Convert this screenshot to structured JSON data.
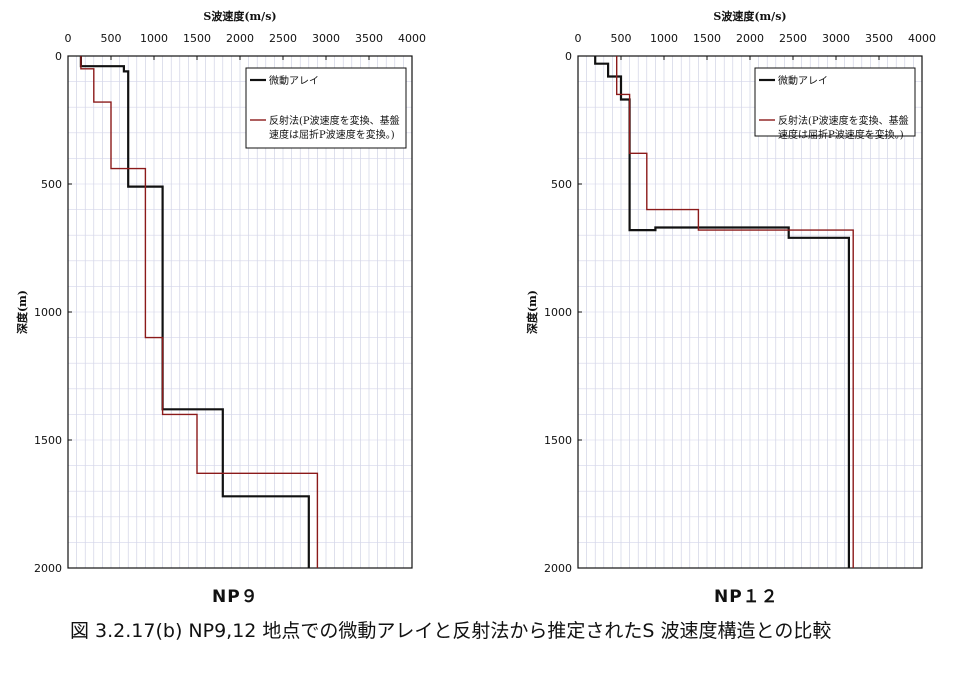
{
  "caption": "図 3.2.17(b)  NP9,12 地点での微動アレイと反射法から推定されたS 波速度構造との比較",
  "chart_data": [
    {
      "type": "line",
      "panel_label": "NP９",
      "xlabel": "S波速度(m/s)",
      "ylabel": "深度(m)",
      "xlim": [
        0,
        4000
      ],
      "ylim": [
        0,
        2000
      ],
      "y_inverted": true,
      "x_ticks": [
        0,
        500,
        1000,
        1500,
        2000,
        2500,
        3000,
        3500,
        4000
      ],
      "y_ticks": [
        0,
        500,
        1000,
        1500,
        2000
      ],
      "legend_position": "top-right",
      "series": [
        {
          "name": "微動アレイ",
          "color": "#111111",
          "legend_lines": [
            "微動アレイ"
          ],
          "x": [
            150,
            150,
            650,
            650,
            700,
            700,
            1100,
            1100,
            1800,
            1800,
            2800,
            2800
          ],
          "y": [
            0,
            40,
            40,
            60,
            60,
            510,
            510,
            1380,
            1380,
            1720,
            1720,
            2000
          ]
        },
        {
          "name": "反射法(P波速度を変換、基盤速度は屈折P波速度を変換。)",
          "color": "#8b1a1a",
          "legend_lines": [
            "反射法(P波速度を変換、基盤",
            "速度は屈折P波速度を変換。)"
          ],
          "x": [
            150,
            150,
            300,
            300,
            500,
            500,
            900,
            900,
            900,
            900,
            1100,
            1100,
            1500,
            1500,
            2900,
            2900
          ],
          "y": [
            0,
            50,
            50,
            180,
            180,
            440,
            440,
            1100,
            1100,
            1100,
            1100,
            1400,
            1400,
            1630,
            1630,
            2000
          ]
        }
      ]
    },
    {
      "type": "line",
      "panel_label": "NP１２",
      "xlabel": "S波速度(m/s)",
      "ylabel": "深度(m)",
      "xlim": [
        0,
        4000
      ],
      "ylim": [
        0,
        2000
      ],
      "y_inverted": true,
      "x_ticks": [
        0,
        500,
        1000,
        1500,
        2000,
        2500,
        3000,
        3500,
        4000
      ],
      "y_ticks": [
        0,
        500,
        1000,
        1500,
        2000
      ],
      "legend_position": "top-right",
      "series": [
        {
          "name": "微動アレイ",
          "color": "#111111",
          "legend_lines": [
            "微動アレイ"
          ],
          "x": [
            200,
            200,
            350,
            350,
            500,
            500,
            600,
            600,
            900,
            900,
            2450,
            2450,
            3150,
            3150
          ],
          "y": [
            0,
            30,
            30,
            80,
            80,
            170,
            170,
            680,
            680,
            670,
            670,
            710,
            710,
            2000
          ]
        },
        {
          "name": "反射法(P波速度を変換、基盤速度は屈折P波速度を変換。)",
          "color": "#8b1a1a",
          "legend_lines": [
            "反射法(P波速度を変換、基盤",
            "速度は屈折P波速度を変換。)"
          ],
          "x": [
            450,
            450,
            600,
            600,
            800,
            800,
            1400,
            1400,
            3200,
            3200
          ],
          "y": [
            0,
            150,
            150,
            380,
            380,
            600,
            600,
            680,
            680,
            2000
          ]
        }
      ]
    }
  ]
}
